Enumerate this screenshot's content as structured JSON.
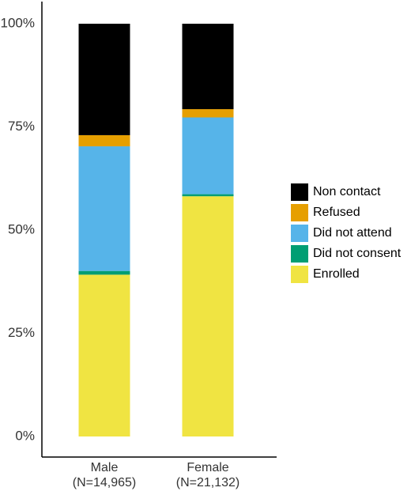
{
  "chart_data": {
    "type": "bar",
    "stacked": true,
    "categories": [
      {
        "name": "Male",
        "n": "(N=14,965)"
      },
      {
        "name": "Female",
        "n": "(N=21,132)"
      }
    ],
    "series": [
      {
        "name": "Enrolled",
        "color": "#f0e442",
        "values": [
          39.2,
          58.2
        ]
      },
      {
        "name": "Did not consent",
        "color": "#009e73",
        "values": [
          0.9,
          0.5
        ]
      },
      {
        "name": "Did not attend",
        "color": "#56b4e9",
        "values": [
          30.2,
          18.6
        ]
      },
      {
        "name": "Refused",
        "color": "#e69f00",
        "values": [
          2.7,
          2.0
        ]
      },
      {
        "name": "Non contact",
        "color": "#000000",
        "values": [
          27.0,
          20.7
        ]
      }
    ],
    "legend_order": [
      "Non contact",
      "Refused",
      "Did not attend",
      "Did not consent",
      "Enrolled"
    ],
    "yticks": [
      {
        "value": 0,
        "label": "0%"
      },
      {
        "value": 25,
        "label": "25%"
      },
      {
        "value": 50,
        "label": "50%"
      },
      {
        "value": 75,
        "label": "75%"
      },
      {
        "value": 100,
        "label": "100%"
      }
    ],
    "ylim": [
      0,
      100
    ],
    "xlabel": "",
    "ylabel": "",
    "title": "",
    "grid": false,
    "legend_position": "right"
  }
}
